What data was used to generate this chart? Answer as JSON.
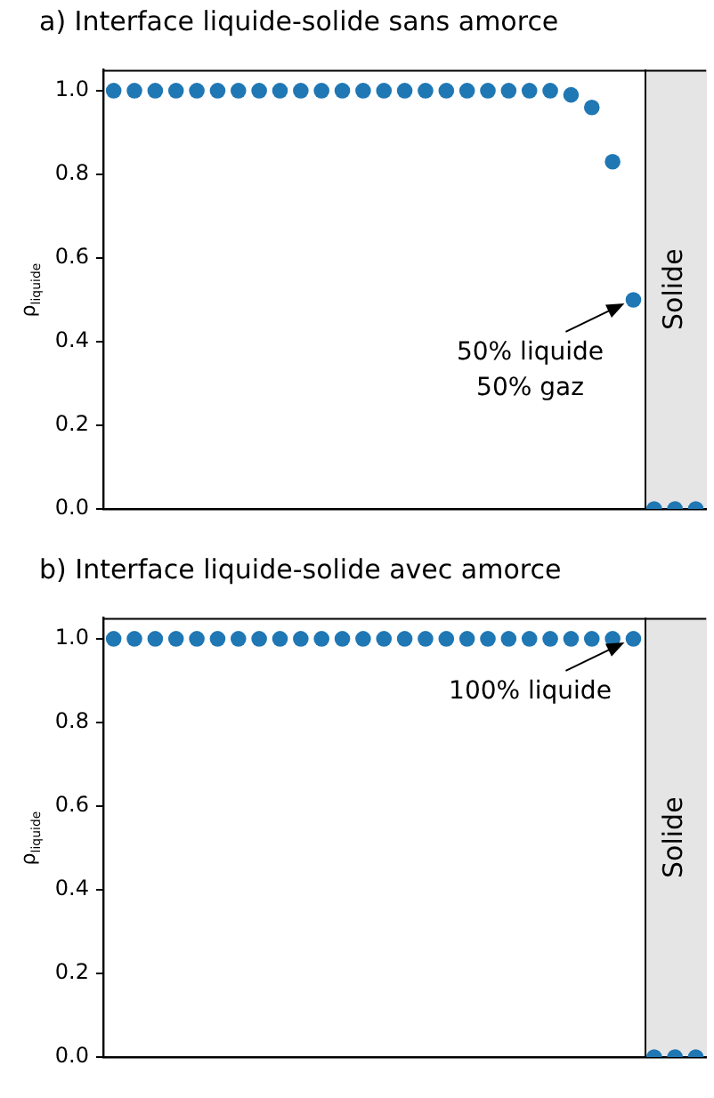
{
  "chart_data": [
    {
      "type": "scatter",
      "title": "a) Interface liquide-solide sans amorce",
      "ylabel": "ρ$_{liquide}$",
      "categories": [
        null,
        null,
        null,
        null,
        null,
        null,
        null,
        null,
        null,
        null,
        null,
        null,
        null,
        null,
        null,
        null,
        null,
        null,
        null,
        null,
        null,
        null,
        null,
        null,
        null,
        null,
        null,
        null,
        null
      ],
      "series": [
        {
          "color": "#1f77b4",
          "values": [
            1,
            1,
            1,
            1,
            1,
            1,
            1,
            1,
            1,
            1,
            1,
            1,
            1,
            1,
            1,
            1,
            1,
            1,
            1,
            1,
            1,
            1,
            0.99,
            0.96,
            0.83,
            0.5,
            0,
            0,
            0
          ]
        }
      ],
      "ylim": [
        0,
        1.05
      ],
      "yticks": [
        {
          "value": 0,
          "label": "0.0"
        },
        {
          "value": 0.2,
          "label": "0.2"
        },
        {
          "value": 0.4,
          "label": "0.4"
        },
        {
          "value": 0.6,
          "label": "0.6"
        },
        {
          "value": 0.8,
          "label": "0.8"
        },
        {
          "value": 1,
          "label": "1.0"
        }
      ],
      "tick_labels": "y",
      "grid": false,
      "legend": false,
      "marker": "circle",
      "annotations": [
        "Solide",
        "50% liquide\n50% gaz"
      ]
    },
    {
      "type": "scatter",
      "title": "b) Interface liquide-solide avec amorce",
      "ylabel": "ρ$_{liquide}$",
      "categories": [
        null,
        null,
        null,
        null,
        null,
        null,
        null,
        null,
        null,
        null,
        null,
        null,
        null,
        null,
        null,
        null,
        null,
        null,
        null,
        null,
        null,
        null,
        null,
        null,
        null,
        null,
        null,
        null,
        null
      ],
      "series": [
        {
          "color": "#1f77b4",
          "values": [
            1,
            1,
            1,
            1,
            1,
            1,
            1,
            1,
            1,
            1,
            1,
            1,
            1,
            1,
            1,
            1,
            1,
            1,
            1,
            1,
            1,
            1,
            1,
            1,
            1,
            1,
            0,
            0,
            0
          ]
        }
      ],
      "ylim": [
        0,
        1.05
      ],
      "yticks": [
        {
          "value": 0,
          "label": "0.0"
        },
        {
          "value": 0.2,
          "label": "0.2"
        },
        {
          "value": 0.4,
          "label": "0.4"
        },
        {
          "value": 0.6,
          "label": "0.6"
        },
        {
          "value": 0.8,
          "label": "0.8"
        },
        {
          "value": 1,
          "label": "1.0"
        }
      ],
      "tick_labels": "y",
      "grid": false,
      "legend": false,
      "marker": "circle",
      "annotations": [
        "Solide",
        "100% liquide"
      ]
    }
  ]
}
